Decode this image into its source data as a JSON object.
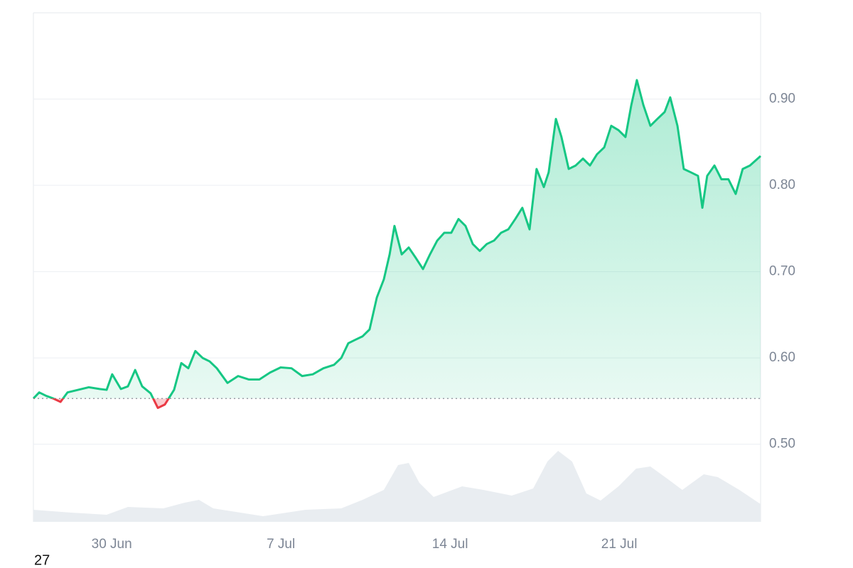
{
  "chart_data": {
    "type": "line",
    "x": [
      26.76,
      27.0,
      27.29,
      27.58,
      27.88,
      28.17,
      28.61,
      29.05,
      29.5,
      29.79,
      30.02,
      30.38,
      30.67,
      30.97,
      31.26,
      31.61,
      31.91,
      32.2,
      32.58,
      32.88,
      33.17,
      33.46,
      33.76,
      34.05,
      34.35,
      34.79,
      35.23,
      35.67,
      36.11,
      36.55,
      36.99,
      37.44,
      37.88,
      38.32,
      38.76,
      39.2,
      39.5,
      39.79,
      40.08,
      40.38,
      40.67,
      40.97,
      41.26,
      41.5,
      41.7,
      42.0,
      42.29,
      42.58,
      42.88,
      43.17,
      43.47,
      43.76,
      44.05,
      44.35,
      44.64,
      44.94,
      45.23,
      45.52,
      45.82,
      46.11,
      46.41,
      46.7,
      46.99,
      47.29,
      47.58,
      47.88,
      48.08,
      48.38,
      48.61,
      48.91,
      49.2,
      49.5,
      49.79,
      50.08,
      50.38,
      50.67,
      50.97,
      51.26,
      51.5,
      51.73,
      52.0,
      52.29,
      52.58,
      52.88,
      53.11,
      53.41,
      53.67,
      53.97,
      54.26,
      54.44,
      54.64,
      54.94,
      55.23,
      55.52,
      55.82,
      56.11,
      56.41,
      56.85
    ],
    "series": [
      {
        "color": "#16c784",
        "color_below": "#ea3943",
        "values": [
          0.553,
          0.56,
          0.556,
          0.553,
          0.549,
          0.56,
          0.563,
          0.566,
          0.564,
          0.563,
          0.581,
          0.564,
          0.567,
          0.586,
          0.567,
          0.559,
          0.542,
          0.546,
          0.563,
          0.594,
          0.588,
          0.608,
          0.6,
          0.596,
          0.588,
          0.571,
          0.579,
          0.575,
          0.575,
          0.583,
          0.589,
          0.588,
          0.579,
          0.581,
          0.588,
          0.592,
          0.6,
          0.617,
          0.621,
          0.625,
          0.633,
          0.67,
          0.691,
          0.72,
          0.753,
          0.72,
          0.728,
          0.716,
          0.703,
          0.72,
          0.736,
          0.745,
          0.745,
          0.761,
          0.753,
          0.732,
          0.724,
          0.732,
          0.736,
          0.745,
          0.749,
          0.761,
          0.774,
          0.749,
          0.819,
          0.798,
          0.815,
          0.877,
          0.856,
          0.819,
          0.823,
          0.831,
          0.823,
          0.836,
          0.844,
          0.869,
          0.864,
          0.856,
          0.893,
          0.922,
          0.893,
          0.869,
          0.877,
          0.885,
          0.902,
          0.869,
          0.819,
          0.815,
          0.811,
          0.774,
          0.811,
          0.823,
          0.807,
          0.807,
          0.79,
          0.819,
          0.823,
          0.834
        ]
      }
    ],
    "baseline": 0.553,
    "volume": {
      "color": "#e9edf1",
      "x": [
        26.76,
        28.32,
        29.79,
        30.67,
        32.14,
        33.02,
        33.61,
        34.2,
        36.26,
        38.02,
        39.5,
        40.38,
        41.26,
        41.85,
        42.29,
        42.73,
        43.32,
        44.5,
        45.38,
        46.55,
        47.44,
        48.03,
        48.47,
        49.05,
        49.64,
        50.23,
        50.97,
        51.7,
        52.29,
        53.02,
        53.61,
        54.5,
        55.08,
        55.97,
        56.85
      ],
      "values": [
        17,
        13,
        10,
        21,
        19,
        27,
        31,
        19,
        8,
        17,
        19,
        31,
        45,
        80,
        83,
        55,
        35,
        50,
        45,
        37,
        47,
        85,
        100,
        85,
        40,
        30,
        50,
        75,
        78,
        60,
        45,
        67,
        63,
        45,
        25
      ]
    },
    "xlim": [
      26.76,
      56.85
    ],
    "xticks": [
      {
        "value": 30,
        "label": "30 Jun"
      },
      {
        "value": 37,
        "label": "7 Jul"
      },
      {
        "value": 44,
        "label": "14 Jul"
      },
      {
        "value": 51,
        "label": "21 Jul"
      }
    ],
    "ylim": [
      0.41,
      1.0
    ],
    "yticks": [
      {
        "value": 0.5,
        "label": "0.50"
      },
      {
        "value": 0.6,
        "label": "0.60"
      },
      {
        "value": 0.7,
        "label": "0.70"
      },
      {
        "value": 0.8,
        "label": "0.80"
      },
      {
        "value": 0.9,
        "label": "0.90"
      }
    ],
    "grid": true,
    "annotations": [
      "27"
    ]
  }
}
